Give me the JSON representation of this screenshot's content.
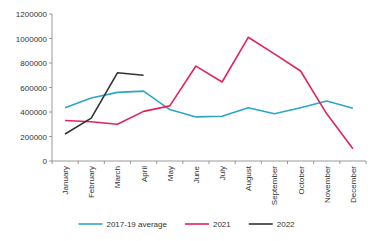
{
  "chart_data": {
    "type": "line",
    "categories": [
      "January",
      "February",
      "March",
      "April",
      "May",
      "June",
      "July",
      "August",
      "September",
      "October",
      "November",
      "December"
    ],
    "series": [
      {
        "name": "2017-19 average",
        "color": "#2ba6c6",
        "values": [
          435000,
          515000,
          560000,
          570000,
          420000,
          360000,
          365000,
          435000,
          385000,
          435000,
          490000,
          430000
        ]
      },
      {
        "name": "2021",
        "color": "#e0245e",
        "values": [
          330000,
          320000,
          300000,
          405000,
          450000,
          775000,
          645000,
          1010000,
          875000,
          735000,
          385000,
          100000
        ]
      },
      {
        "name": "2022",
        "color": "#333333",
        "values": [
          220000,
          350000,
          720000,
          700000,
          null,
          null,
          null,
          null,
          null,
          null,
          null,
          null
        ]
      }
    ],
    "ylim": [
      0,
      1200000
    ],
    "yticks": [
      0,
      200000,
      400000,
      600000,
      800000,
      1000000,
      1200000
    ],
    "grid": false,
    "legend": "bottom"
  }
}
